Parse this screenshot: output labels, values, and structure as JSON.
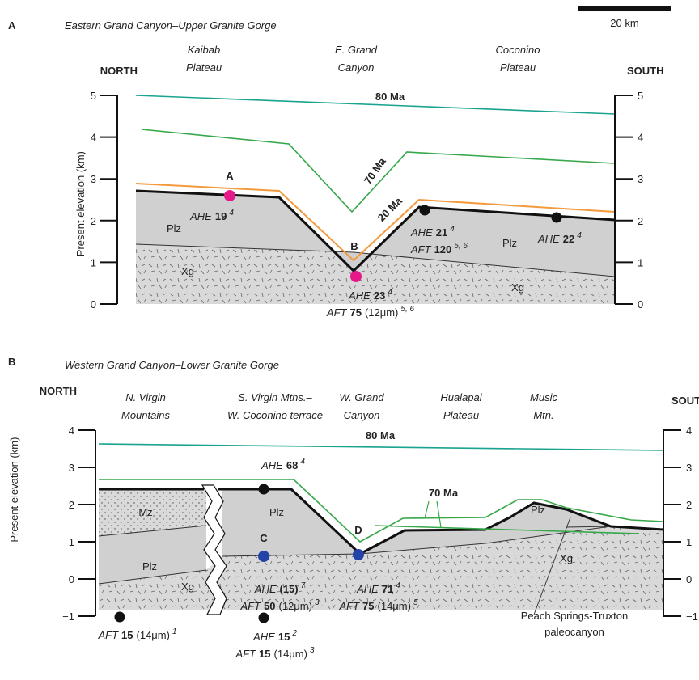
{
  "panels": [
    {
      "letter": "A",
      "title": "Eastern Grand Canyon–Upper Granite Gorge",
      "scale_bar": "20 km",
      "north": "NORTH",
      "south": "SOUTH",
      "y_label": "Present elevation (km)",
      "yticks": [
        0,
        1,
        2,
        3,
        4,
        5
      ],
      "regions": [
        [
          "Kaibab",
          "Plateau"
        ],
        [
          "E. Grand",
          "Canyon"
        ],
        [
          "Coconino",
          "Plateau"
        ]
      ],
      "isochrons": [
        "80 Ma",
        "70 Ma",
        "20 Ma"
      ],
      "units": [
        "Plz",
        "Xg",
        "Plz",
        "Xg"
      ],
      "samples": [
        "A",
        "B"
      ],
      "annotations": [
        [
          {
            "method": "AHE",
            "age": "19",
            "ref": "4"
          }
        ],
        [
          {
            "method": "AHE",
            "age": "21",
            "ref": "4"
          },
          {
            "method": "AFT",
            "age": "120",
            "ref": "5, 6"
          }
        ],
        [
          {
            "method": "AHE",
            "age": "22",
            "ref": "4"
          }
        ],
        [
          {
            "method": "AHE",
            "age": "23",
            "ref": "4"
          },
          {
            "method": "AFT",
            "age": "75",
            "extra": "(12μm)",
            "ref": "5, 6"
          }
        ]
      ]
    },
    {
      "letter": "B",
      "title": "Western Grand Canyon–Lower Granite Gorge",
      "north": "NORTH",
      "south": "SOUTH",
      "y_label": "Present elevation (km)",
      "yticks": [
        {
          "value": -1,
          "label": "−1"
        },
        0,
        1,
        2,
        3,
        4
      ],
      "regions": [
        [
          "N. Virgin",
          "Mountains"
        ],
        [
          "S. Virgin Mtns.–",
          "W. Coconino terrace"
        ],
        [
          "W. Grand",
          "Canyon"
        ],
        [
          "Hualapai",
          "Plateau"
        ],
        [
          "Music",
          "Mtn."
        ]
      ],
      "isochrons": [
        "80 Ma",
        "70 Ma"
      ],
      "units": [
        "Mz",
        "Plz",
        "Xg",
        "Plz",
        "Plz",
        "Xg"
      ],
      "samples": [
        "C",
        "D"
      ],
      "annotations": [
        [
          {
            "method": "AHE",
            "age": "68",
            "ref": "4"
          }
        ],
        [
          {
            "method": "AHE",
            "age": "(15)",
            "ref": "7"
          },
          {
            "method": "AFT",
            "age": "50",
            "extra": "(12μm)",
            "ref": "3"
          }
        ],
        [
          {
            "method": "AHE",
            "age": "71",
            "ref": "4"
          },
          {
            "method": "AFT",
            "age": "75",
            "extra": "(14μm)",
            "ref": "5"
          }
        ],
        [
          {
            "method": "AFT",
            "age": "15",
            "extra": "(14μm)",
            "ref": "1"
          }
        ],
        [
          {
            "method": "AHE",
            "age": "15",
            "ref": "2"
          },
          {
            "method": "AFT",
            "age": "15",
            "extra": "(14μm)",
            "ref": "3"
          }
        ]
      ],
      "paleocanyon": [
        "Peach Springs-Truxton",
        "paleocanyon"
      ]
    }
  ]
}
